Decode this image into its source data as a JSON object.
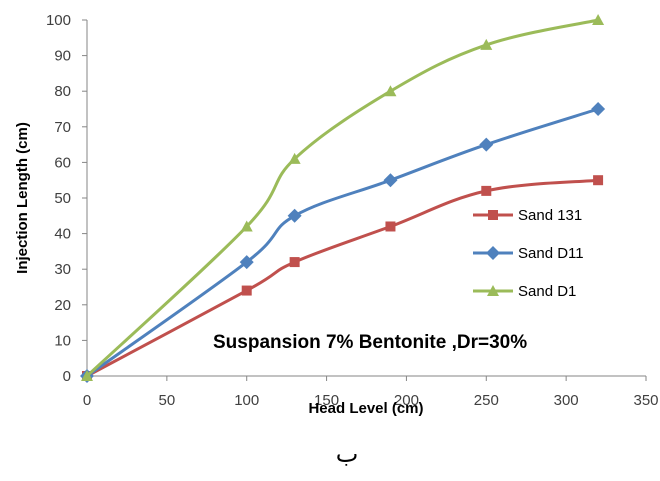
{
  "chart_data": {
    "type": "line",
    "xlabel": "Head Level (cm)",
    "ylabel": "Injection Length (cm)",
    "xlim": [
      0,
      350
    ],
    "ylim": [
      0,
      100
    ],
    "xticks": [
      "0",
      "50",
      "100",
      "150",
      "200",
      "250",
      "300",
      "350"
    ],
    "yticks": [
      "0",
      "10",
      "20",
      "30",
      "40",
      "50",
      "60",
      "70",
      "80",
      "90",
      "100"
    ],
    "grid": false,
    "legend_position": "right",
    "annotation": "Suspansion  7% Bentonite ,Dr=30%",
    "caption": "ب",
    "series": [
      {
        "name": "Sand 131",
        "color": "#c0504d",
        "marker": "square",
        "x": [
          0,
          100,
          130,
          190,
          250,
          320
        ],
        "y": [
          0,
          24,
          32,
          42,
          52,
          55
        ]
      },
      {
        "name": "Sand D11",
        "color": "#4f81bd",
        "marker": "diamond",
        "x": [
          0,
          100,
          130,
          190,
          250,
          320
        ],
        "y": [
          0,
          32,
          45,
          55,
          65,
          75
        ]
      },
      {
        "name": "Sand D1",
        "color": "#9bbb59",
        "marker": "triangle",
        "x": [
          0,
          100,
          130,
          190,
          250,
          320
        ],
        "y": [
          0,
          42,
          61,
          80,
          93,
          100
        ]
      }
    ]
  }
}
